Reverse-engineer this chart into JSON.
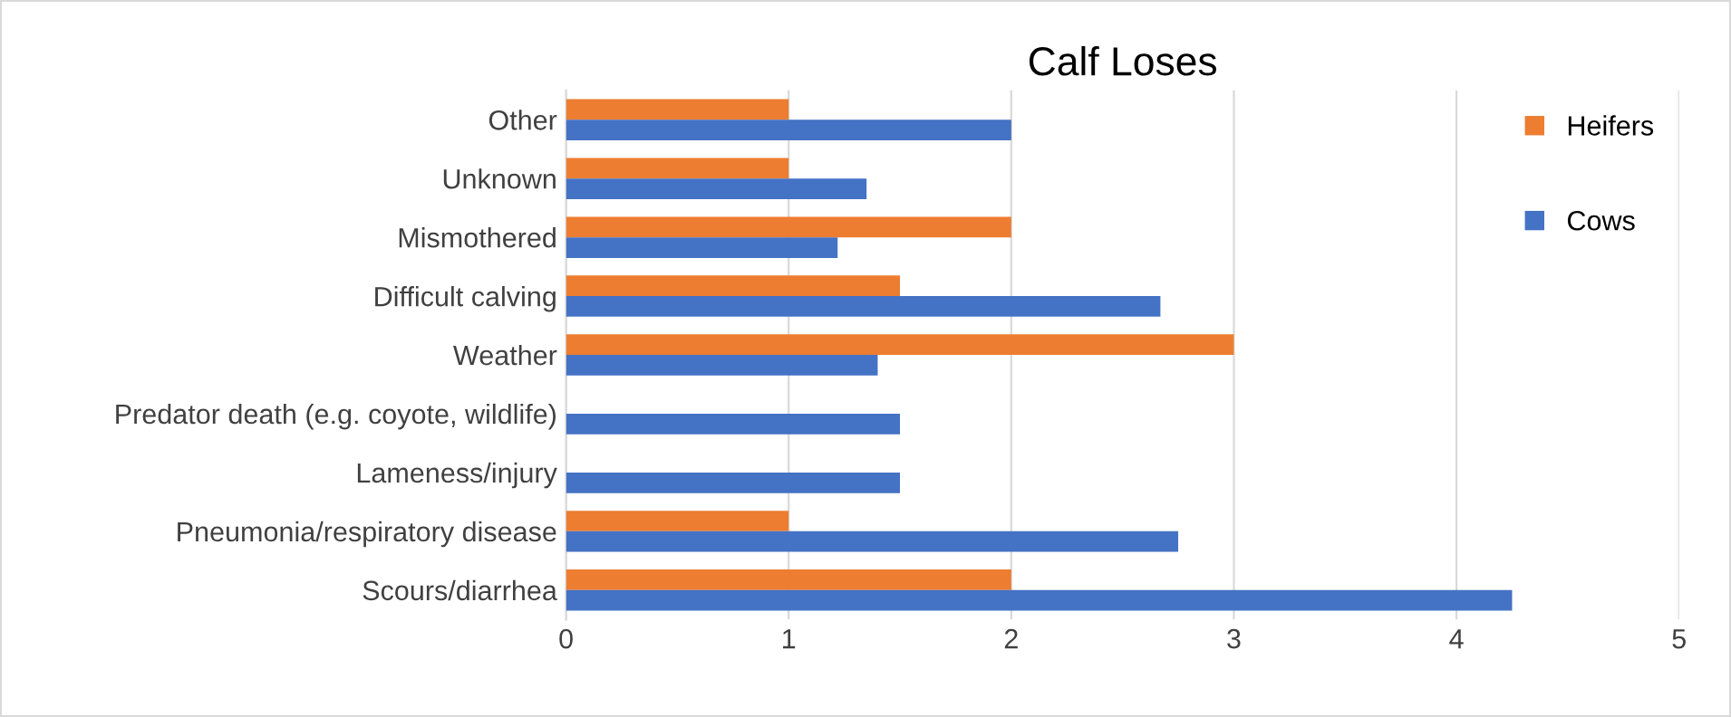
{
  "chart_data": {
    "type": "bar",
    "orientation": "horizontal",
    "title": "Calf Loses",
    "categories": [
      "Other",
      "Unknown",
      "Mismothered",
      "Difficult calving",
      "Weather",
      "Predator death (e.g. coyote, wildlife)",
      "Lameness/injury",
      "Pneumonia/respiratory disease",
      "Scours/diarrhea"
    ],
    "series": [
      {
        "name": "Heifers",
        "color": "#ed7d31",
        "values": [
          1,
          1,
          2,
          1.5,
          3,
          null,
          null,
          1,
          2
        ]
      },
      {
        "name": "Cows",
        "color": "#4472c4",
        "values": [
          2,
          1.35,
          1.22,
          2.67,
          1.4,
          1.5,
          1.5,
          2.75,
          4.25
        ]
      }
    ],
    "xlim": [
      0,
      5
    ],
    "xticks": [
      0,
      1,
      2,
      3,
      4,
      5
    ],
    "grid": "x",
    "legend": "top right"
  }
}
